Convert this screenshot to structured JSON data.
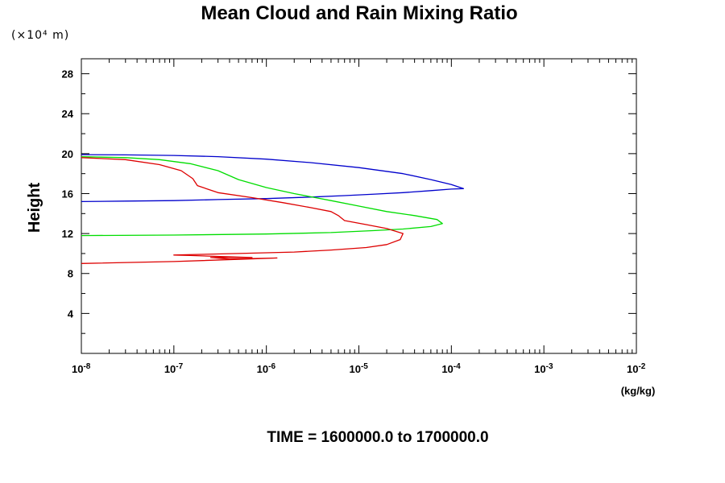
{
  "chart_data": {
    "type": "line",
    "title": "Mean Cloud and Rain Mixing Ratio",
    "y_scale_note": "(×10⁴ m)",
    "ylabel": "Height",
    "xlabel": "(kg/kg)",
    "caption": "TIME = 1600000.0 to 1700000.0",
    "x_scale": "log",
    "xlim": [
      1e-08,
      0.01
    ],
    "ylim": [
      0,
      29.5
    ],
    "x_ticks": [
      {
        "value": 1e-08,
        "base": "10",
        "exp": "-8"
      },
      {
        "value": 1e-07,
        "base": "10",
        "exp": "-7"
      },
      {
        "value": 1e-06,
        "base": "10",
        "exp": "-6"
      },
      {
        "value": 1e-05,
        "base": "10",
        "exp": "-5"
      },
      {
        "value": 0.0001,
        "base": "10",
        "exp": "-4"
      },
      {
        "value": 0.001,
        "base": "10",
        "exp": "-3"
      },
      {
        "value": 0.01,
        "base": "10",
        "exp": "-2"
      }
    ],
    "y_ticks": [
      "4",
      "8",
      "12",
      "16",
      "20",
      "24",
      "28"
    ],
    "grid": false,
    "series": [
      {
        "color": "#0000cc",
        "points": [
          [
            1e-08,
            15.2
          ],
          [
            3e-08,
            15.25
          ],
          [
            1e-07,
            15.3
          ],
          [
            3e-07,
            15.4
          ],
          [
            1e-06,
            15.5
          ],
          [
            3e-06,
            15.65
          ],
          [
            7e-06,
            15.8
          ],
          [
            1.5e-05,
            15.95
          ],
          [
            3e-05,
            16.1
          ],
          [
            6e-05,
            16.3
          ],
          [
            0.0001,
            16.45
          ],
          [
            0.000135,
            16.5
          ],
          [
            0.0001,
            16.9
          ],
          [
            6e-05,
            17.4
          ],
          [
            3e-05,
            18.0
          ],
          [
            1e-05,
            18.6
          ],
          [
            3e-06,
            19.1
          ],
          [
            1e-06,
            19.45
          ],
          [
            3e-07,
            19.7
          ],
          [
            1e-07,
            19.82
          ],
          [
            3e-08,
            19.88
          ],
          [
            1e-08,
            19.9
          ]
        ]
      },
      {
        "color": "#00dd00",
        "points": [
          [
            1e-08,
            11.8
          ],
          [
            1e-07,
            11.85
          ],
          [
            1e-06,
            11.95
          ],
          [
            5e-06,
            12.1
          ],
          [
            1.5e-05,
            12.3
          ],
          [
            3e-05,
            12.45
          ],
          [
            6e-05,
            12.7
          ],
          [
            8e-05,
            13.0
          ],
          [
            7e-05,
            13.4
          ],
          [
            4e-05,
            13.8
          ],
          [
            2e-05,
            14.2
          ],
          [
            1e-05,
            14.75
          ],
          [
            5e-06,
            15.3
          ],
          [
            2e-06,
            16.0
          ],
          [
            1e-06,
            16.6
          ],
          [
            5e-07,
            17.4
          ],
          [
            3e-07,
            18.3
          ],
          [
            1.5e-07,
            19.0
          ],
          [
            7e-08,
            19.4
          ],
          [
            3e-08,
            19.6
          ],
          [
            1e-08,
            19.7
          ]
        ]
      },
      {
        "color": "#dd0000",
        "points": [
          [
            1e-08,
            9.0
          ],
          [
            1e-07,
            9.2
          ],
          [
            6e-07,
            9.45
          ],
          [
            1.3e-06,
            9.55
          ],
          [
            4e-07,
            9.45
          ],
          [
            2.5e-07,
            9.6
          ],
          [
            7e-07,
            9.6
          ],
          [
            1.5e-07,
            9.8
          ],
          [
            1e-07,
            9.85
          ],
          [
            5e-07,
            10.0
          ],
          [
            2e-06,
            10.15
          ],
          [
            5e-06,
            10.35
          ],
          [
            1.2e-05,
            10.6
          ],
          [
            2e-05,
            10.9
          ],
          [
            2.8e-05,
            11.4
          ],
          [
            3e-05,
            12.0
          ],
          [
            2e-05,
            12.5
          ],
          [
            1.2e-05,
            12.9
          ],
          [
            7e-06,
            13.3
          ],
          [
            6e-06,
            13.8
          ],
          [
            5e-06,
            14.2
          ],
          [
            3e-06,
            14.6
          ],
          [
            1.5e-06,
            15.1
          ],
          [
            7e-07,
            15.6
          ],
          [
            3e-07,
            16.1
          ],
          [
            1.8e-07,
            16.8
          ],
          [
            1.6e-07,
            17.5
          ],
          [
            1.2e-07,
            18.3
          ],
          [
            7e-08,
            18.9
          ],
          [
            3e-08,
            19.4
          ],
          [
            1e-08,
            19.6
          ]
        ]
      }
    ]
  }
}
